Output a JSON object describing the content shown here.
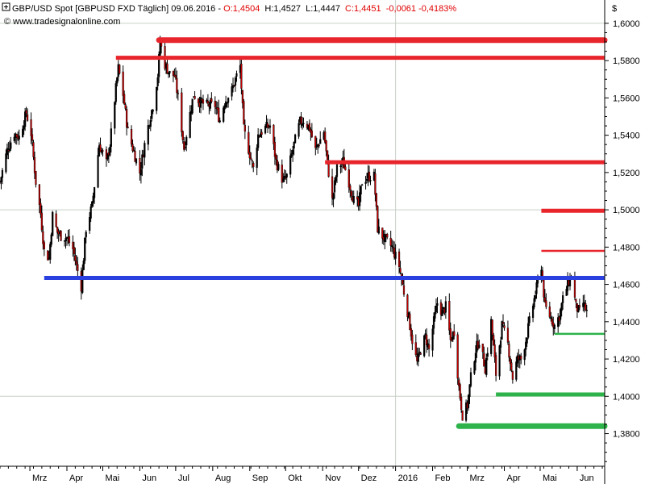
{
  "header": {
    "instrument": "GBP/USD Spot [GBPUSD FXD  Täglich] 09.06.2016 - ",
    "open": "O:1,4504",
    "high": "H:1,4527",
    "low": "L:1,4447",
    "close": "C:1,4451",
    "change": "-0,0061 -0,4183%",
    "source": "© www.tradesignalonline.com",
    "currency": "$"
  },
  "colors": {
    "background": "#ffffff",
    "grid": "#c8d0c8",
    "candle_up": "#000000",
    "candle_down": "#c00000",
    "resistance": "#e8252b",
    "support": "#2db34a",
    "key_level": "#2a3fe0",
    "header_values": "#e00000"
  },
  "icons": {
    "expand": "square-plus-icon"
  },
  "chart_data": {
    "type": "candlestick",
    "title": "GBP/USD Spot",
    "xlabel": "",
    "ylabel": "$",
    "ylim": [
      1.3625,
      1.6125
    ],
    "y_ticks": [
      "1,6000",
      "1,5800",
      "1,5600",
      "1,5400",
      "1,5200",
      "1,5000",
      "1,4800",
      "1,4600",
      "1,4400",
      "1,4200",
      "1,4000",
      "1,3800"
    ],
    "x_ticks": [
      {
        "label": "Mrz",
        "date": "2015-03-01"
      },
      {
        "label": "Apr",
        "date": "2015-04-01"
      },
      {
        "label": "Mai",
        "date": "2015-05-01"
      },
      {
        "label": "Jun",
        "date": "2015-06-01"
      },
      {
        "label": "Jul",
        "date": "2015-07-01"
      },
      {
        "label": "Aug",
        "date": "2015-08-01"
      },
      {
        "label": "Sep",
        "date": "2015-09-01"
      },
      {
        "label": "Okt",
        "date": "2015-10-01"
      },
      {
        "label": "Nov",
        "date": "2015-11-01"
      },
      {
        "label": "Dez",
        "date": "2015-12-01"
      },
      {
        "label": "2016",
        "date": "2016-01-01"
      },
      {
        "label": "Feb",
        "date": "2016-02-01"
      },
      {
        "label": "Mrz",
        "date": "2016-03-01"
      },
      {
        "label": "Apr",
        "date": "2016-04-01"
      },
      {
        "label": "Mai",
        "date": "2016-05-01"
      },
      {
        "label": "Jun",
        "date": "2016-06-01"
      }
    ],
    "x_range": [
      "2015-02-04",
      "2016-06-24"
    ],
    "grid": "gridlines at 1,6000 / 1,5000 / 1,4000 and at 2016",
    "price_path": [
      [
        "2015-02-04",
        1.515
      ],
      [
        "2015-02-10",
        1.532
      ],
      [
        "2015-02-16",
        1.541
      ],
      [
        "2015-02-20",
        1.539
      ],
      [
        "2015-02-26",
        1.552
      ],
      [
        "2015-03-02",
        1.541
      ],
      [
        "2015-03-06",
        1.515
      ],
      [
        "2015-03-10",
        1.498
      ],
      [
        "2015-03-13",
        1.478
      ],
      [
        "2015-03-17",
        1.474
      ],
      [
        "2015-03-20",
        1.497
      ],
      [
        "2015-03-24",
        1.488
      ],
      [
        "2015-03-27",
        1.486
      ],
      [
        "2015-04-01",
        1.485
      ],
      [
        "2015-04-06",
        1.479
      ],
      [
        "2015-04-09",
        1.47
      ],
      [
        "2015-04-13",
        1.459
      ],
      [
        "2015-04-17",
        1.49
      ],
      [
        "2015-04-22",
        1.502
      ],
      [
        "2015-04-28",
        1.535
      ],
      [
        "2015-05-04",
        1.525
      ],
      [
        "2015-05-07",
        1.535
      ],
      [
        "2015-05-12",
        1.565
      ],
      [
        "2015-05-14",
        1.576
      ],
      [
        "2015-05-18",
        1.562
      ],
      [
        "2015-05-22",
        1.542
      ],
      [
        "2015-05-27",
        1.531
      ],
      [
        "2015-06-01",
        1.52
      ],
      [
        "2015-06-05",
        1.535
      ],
      [
        "2015-06-09",
        1.548
      ],
      [
        "2015-06-12",
        1.556
      ],
      [
        "2015-06-16",
        1.572
      ],
      [
        "2015-06-18",
        1.59
      ],
      [
        "2015-06-22",
        1.578
      ],
      [
        "2015-06-26",
        1.573
      ],
      [
        "2015-06-30",
        1.572
      ],
      [
        "2015-07-03",
        1.56
      ],
      [
        "2015-07-08",
        1.533
      ],
      [
        "2015-07-12",
        1.548
      ],
      [
        "2015-07-16",
        1.562
      ],
      [
        "2015-07-21",
        1.558
      ],
      [
        "2015-07-27",
        1.556
      ],
      [
        "2015-08-03",
        1.556
      ],
      [
        "2015-08-07",
        1.548
      ],
      [
        "2015-08-11",
        1.558
      ],
      [
        "2015-08-17",
        1.564
      ],
      [
        "2015-08-20",
        1.57
      ],
      [
        "2015-08-24",
        1.577
      ],
      [
        "2015-08-27",
        1.543
      ],
      [
        "2015-09-01",
        1.53
      ],
      [
        "2015-09-04",
        1.522
      ],
      [
        "2015-09-08",
        1.54
      ],
      [
        "2015-09-14",
        1.544
      ],
      [
        "2015-09-18",
        1.545
      ],
      [
        "2015-09-23",
        1.526
      ],
      [
        "2015-09-29",
        1.515
      ],
      [
        "2015-10-02",
        1.518
      ],
      [
        "2015-10-08",
        1.535
      ],
      [
        "2015-10-13",
        1.547
      ],
      [
        "2015-10-16",
        1.548
      ],
      [
        "2015-10-21",
        1.544
      ],
      [
        "2015-10-26",
        1.532
      ],
      [
        "2015-11-02",
        1.542
      ],
      [
        "2015-11-05",
        1.525
      ],
      [
        "2015-11-09",
        1.505
      ],
      [
        "2015-11-13",
        1.522
      ],
      [
        "2015-11-18",
        1.526
      ],
      [
        "2015-11-23",
        1.515
      ],
      [
        "2015-11-27",
        1.505
      ],
      [
        "2015-12-01",
        1.502
      ],
      [
        "2015-12-04",
        1.515
      ],
      [
        "2015-12-09",
        1.518
      ],
      [
        "2015-12-14",
        1.518
      ],
      [
        "2015-12-17",
        1.49
      ],
      [
        "2015-12-22",
        1.485
      ],
      [
        "2015-12-29",
        1.48
      ],
      [
        "2016-01-04",
        1.47
      ],
      [
        "2016-01-08",
        1.456
      ],
      [
        "2016-01-12",
        1.442
      ],
      [
        "2016-01-15",
        1.43
      ],
      [
        "2016-01-19",
        1.418
      ],
      [
        "2016-01-22",
        1.425
      ],
      [
        "2016-01-26",
        1.432
      ],
      [
        "2016-01-29",
        1.425
      ],
      [
        "2016-02-02",
        1.44
      ],
      [
        "2016-02-05",
        1.45
      ],
      [
        "2016-02-09",
        1.445
      ],
      [
        "2016-02-12",
        1.448
      ],
      [
        "2016-02-16",
        1.43
      ],
      [
        "2016-02-19",
        1.435
      ],
      [
        "2016-02-23",
        1.405
      ],
      [
        "2016-02-26",
        1.39
      ],
      [
        "2016-03-01",
        1.395
      ],
      [
        "2016-03-04",
        1.41
      ],
      [
        "2016-03-08",
        1.425
      ],
      [
        "2016-03-11",
        1.43
      ],
      [
        "2016-03-16",
        1.415
      ],
      [
        "2016-03-21",
        1.44
      ],
      [
        "2016-03-25",
        1.412
      ],
      [
        "2016-03-30",
        1.438
      ],
      [
        "2016-04-04",
        1.428
      ],
      [
        "2016-04-08",
        1.41
      ],
      [
        "2016-04-12",
        1.42
      ],
      [
        "2016-04-15",
        1.42
      ],
      [
        "2016-04-19",
        1.43
      ],
      [
        "2016-04-22",
        1.44
      ],
      [
        "2016-04-27",
        1.455
      ],
      [
        "2016-05-02",
        1.47
      ],
      [
        "2016-05-05",
        1.448
      ],
      [
        "2016-05-10",
        1.442
      ],
      [
        "2016-05-13",
        1.438
      ],
      [
        "2016-05-17",
        1.443
      ],
      [
        "2016-05-20",
        1.452
      ],
      [
        "2016-05-24",
        1.46
      ],
      [
        "2016-05-27",
        1.465
      ],
      [
        "2016-05-31",
        1.448
      ],
      [
        "2016-06-03",
        1.445
      ],
      [
        "2016-06-06",
        1.45
      ],
      [
        "2016-06-09",
        1.4451
      ]
    ],
    "levels": [
      {
        "name": "resistance-1-5910",
        "value": 1.591,
        "from": "2015-06-17",
        "to": "2016-06-24",
        "color": "#e8252b",
        "weight": "thick"
      },
      {
        "name": "resistance-1-5815",
        "value": 1.5815,
        "from": "2015-05-12",
        "to": "2016-06-24",
        "color": "#e8252b",
        "weight": "medium"
      },
      {
        "name": "resistance-1-5255",
        "value": 1.5255,
        "from": "2015-11-03",
        "to": "2016-06-24",
        "color": "#e8252b",
        "weight": "medium"
      },
      {
        "name": "resistance-1-4995",
        "value": 1.4995,
        "from": "2016-05-02",
        "to": "2016-06-24",
        "color": "#e8252b",
        "weight": "medium"
      },
      {
        "name": "resistance-1-4780",
        "value": 1.478,
        "from": "2016-05-02",
        "to": "2016-06-24",
        "color": "#e8252b",
        "weight": "thin"
      },
      {
        "name": "key-level-1-4635",
        "value": 1.4635,
        "from": "2015-03-13",
        "to": "2016-06-24",
        "color": "#2a3fe0",
        "weight": "medium"
      },
      {
        "name": "support-1-4335",
        "value": 1.4335,
        "from": "2016-05-13",
        "to": "2016-06-24",
        "color": "#2db34a",
        "weight": "thin"
      },
      {
        "name": "support-1-4010",
        "value": 1.401,
        "from": "2016-03-25",
        "to": "2016-06-24",
        "color": "#2db34a",
        "weight": "medium"
      },
      {
        "name": "support-1-3840",
        "value": 1.384,
        "from": "2016-02-23",
        "to": "2016-06-24",
        "color": "#2db34a",
        "weight": "thick"
      }
    ]
  }
}
